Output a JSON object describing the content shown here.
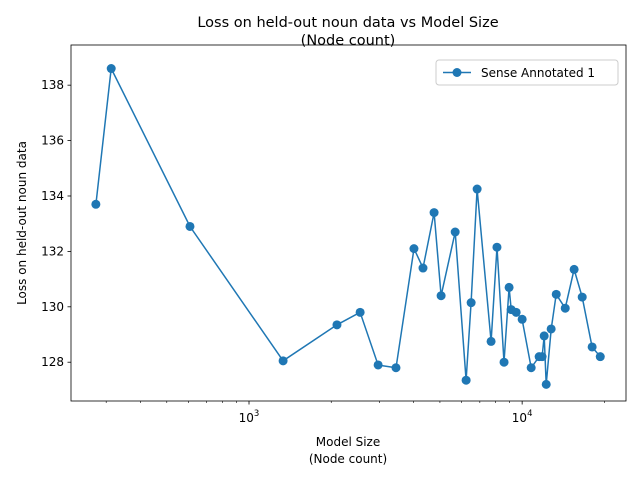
{
  "chart_data": {
    "type": "line",
    "title": "Loss on held-out noun data vs Model Size",
    "subtitle": "(Node count)",
    "xlabel": "Model Size",
    "xlabel_sub": "(Node count)",
    "ylabel": "Loss on held-out noun data",
    "xscale": "log",
    "xlim": [
      223,
      24000
    ],
    "ylim": [
      126.6,
      139.45
    ],
    "xticks": [
      {
        "value": 1000,
        "label": "10^3"
      },
      {
        "value": 10000,
        "label": "10^4"
      }
    ],
    "yticks": [
      128,
      130,
      132,
      134,
      136,
      138
    ],
    "grid": false,
    "legend_placement": "top-right",
    "color": "#1f77b4",
    "series": [
      {
        "name": "Sense Annotated 1",
        "marker": "circle",
        "x": [
          275,
          313,
          608,
          1333,
          2099,
          2552,
          2970,
          3452,
          4017,
          4335,
          4760,
          5050,
          5686,
          6236,
          6505,
          6842,
          7696,
          8087,
          8585,
          8958,
          9117,
          9508,
          10000,
          10790,
          11540,
          11830,
          12040,
          12250,
          12770,
          13330,
          14380,
          15500,
          16590,
          18040,
          19320
        ],
        "y": [
          133.7,
          138.6,
          132.9,
          128.05,
          129.35,
          129.8,
          127.9,
          127.8,
          132.1,
          131.4,
          133.4,
          130.4,
          132.7,
          127.35,
          130.15,
          134.25,
          128.75,
          132.15,
          128.0,
          130.7,
          129.9,
          129.8,
          129.55,
          127.8,
          128.2,
          128.2,
          128.95,
          127.2,
          129.2,
          130.45,
          129.95,
          131.35,
          130.35,
          128.55,
          128.2
        ]
      }
    ]
  }
}
